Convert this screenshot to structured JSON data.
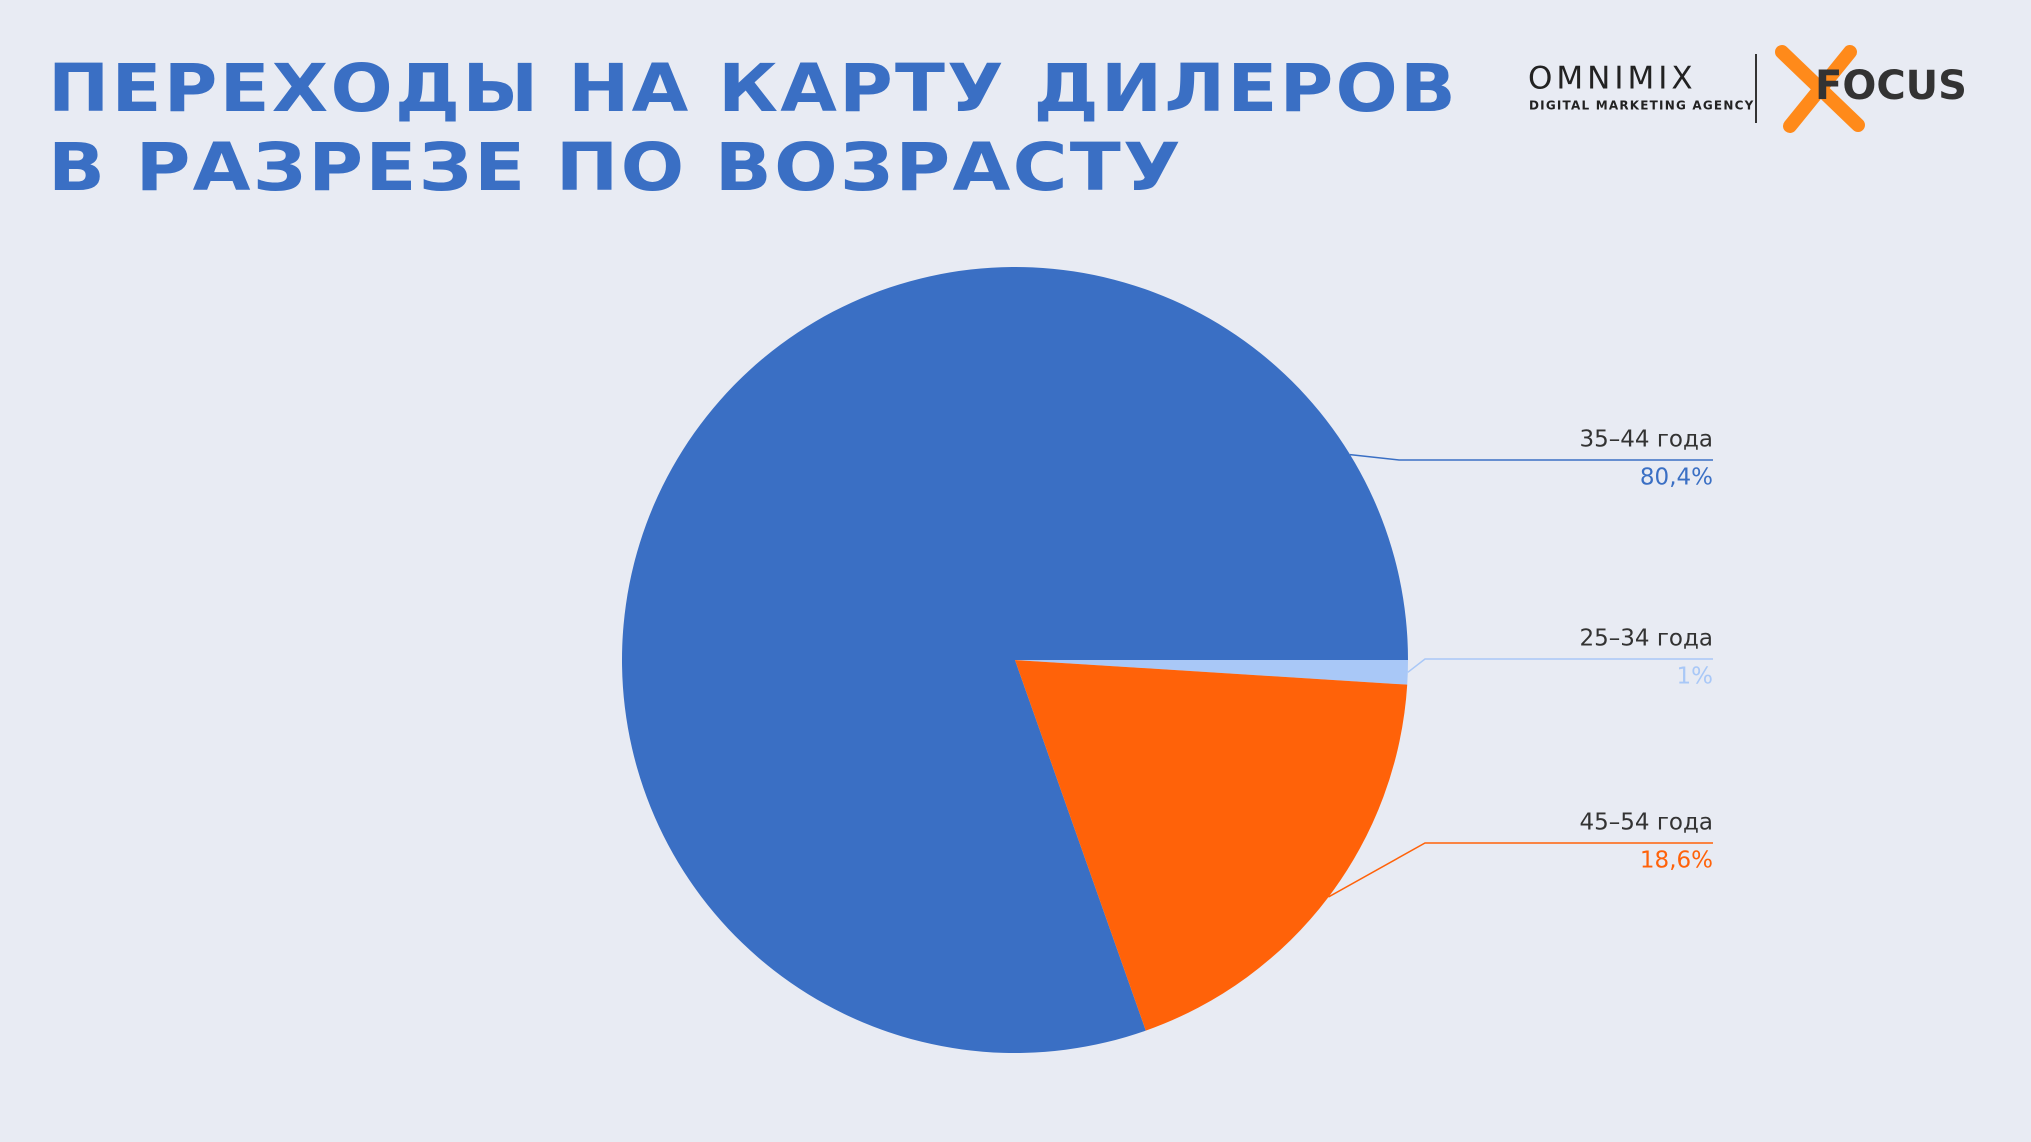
{
  "chart_data": {
    "type": "pie",
    "title": [
      "ПЕРЕХОДЫ НА КАРТУ ДИЛЕРОВ",
      "В РАЗРЕЗЕ ПО ВОЗРАСТУ"
    ],
    "categories": [
      "35–44 года",
      "25–34 года",
      "45–54 года"
    ],
    "values": [
      80.4,
      1,
      18.6
    ],
    "value_labels": [
      "80,4%",
      "1%",
      "18,6%"
    ],
    "colors": [
      "#3a6fc4",
      "#a9c8f7",
      "#ff6209"
    ]
  },
  "logo": {
    "name": "OMNIMIX",
    "tagline": "DIGITAL MARKETING AGENCY",
    "partner": "FOCUS"
  }
}
